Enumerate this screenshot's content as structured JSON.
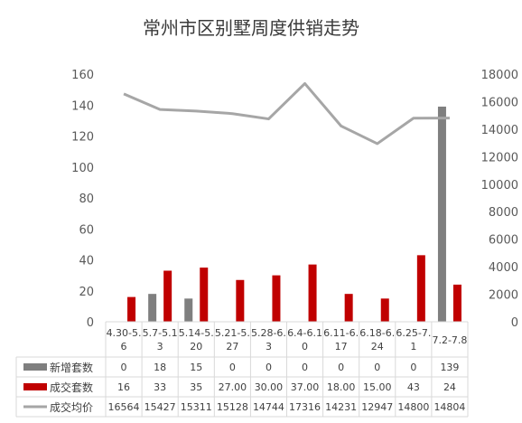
{
  "chart_data": {
    "type": "bar",
    "title": "常州市区别墅周度供销走势",
    "categories": [
      "4.30-5.\n6",
      "5.7-5.1\n3",
      "5.14-5.\n20",
      "5.21-5.\n27",
      "5.28-6.\n3",
      "6.4-6.1\n0",
      "6.11-6.\n17",
      "6.18-6.\n24",
      "6.25-7.\n1",
      "7.2-7.8"
    ],
    "ylim_left": [
      0,
      160
    ],
    "yticks_left": [
      "0",
      "20",
      "40",
      "60",
      "80",
      "100",
      "120",
      "140",
      "160"
    ],
    "ylim_right": [
      0,
      18000
    ],
    "yticks_right": [
      "0",
      "2000",
      "4000",
      "6000",
      "8000",
      "10000",
      "12000",
      "14000",
      "16000",
      "18000"
    ],
    "series": [
      {
        "name": "新增套数",
        "type": "bar",
        "axis": "left",
        "color": "#7f7f7f",
        "values": [
          0,
          18,
          15,
          0,
          0,
          0,
          0,
          0,
          0,
          139
        ],
        "labels": [
          "0",
          "18",
          "15",
          "0",
          "0",
          "0",
          "0",
          "0",
          "0",
          "139"
        ]
      },
      {
        "name": "成交套数",
        "type": "bar",
        "axis": "left",
        "color": "#c00000",
        "values": [
          16,
          33,
          35,
          27,
          30,
          37,
          18,
          15,
          43,
          24
        ],
        "labels": [
          "16",
          "33",
          "35",
          "27.00",
          "30.00",
          "37.00",
          "18.00",
          "15.00",
          "43",
          "24"
        ]
      },
      {
        "name": "成交均价",
        "type": "line",
        "axis": "right",
        "color": "#a6a6a6",
        "values": [
          16564,
          15427,
          15311,
          15128,
          14744,
          17316,
          14231,
          12947,
          14800,
          14804
        ],
        "labels": [
          "16564",
          "15427",
          "15311",
          "15128",
          "14744",
          "17316",
          "14231",
          "12947",
          "14800",
          "14804"
        ]
      }
    ],
    "legend_placement": "data-table-left",
    "grid": false
  }
}
